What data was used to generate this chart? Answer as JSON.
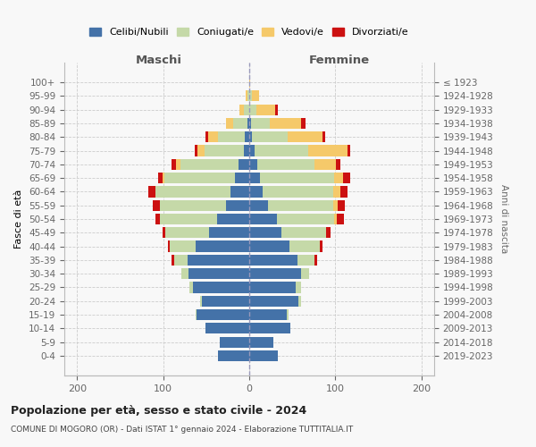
{
  "age_groups": [
    "0-4",
    "5-9",
    "10-14",
    "15-19",
    "20-24",
    "25-29",
    "30-34",
    "35-39",
    "40-44",
    "45-49",
    "50-54",
    "55-59",
    "60-64",
    "65-69",
    "70-74",
    "75-79",
    "80-84",
    "85-89",
    "90-94",
    "95-99",
    "100+"
  ],
  "birth_years": [
    "2019-2023",
    "2014-2018",
    "2009-2013",
    "2004-2008",
    "1999-2003",
    "1994-1998",
    "1989-1993",
    "1984-1988",
    "1979-1983",
    "1974-1978",
    "1969-1973",
    "1964-1968",
    "1959-1963",
    "1954-1958",
    "1949-1953",
    "1944-1948",
    "1939-1943",
    "1934-1938",
    "1929-1933",
    "1924-1928",
    "≤ 1923"
  ],
  "maschi": {
    "celibi": [
      36,
      34,
      51,
      61,
      55,
      65,
      71,
      72,
      62,
      47,
      37,
      27,
      22,
      17,
      12,
      6,
      5,
      2,
      0,
      0,
      0
    ],
    "coniugati": [
      0,
      0,
      0,
      1,
      2,
      5,
      8,
      15,
      30,
      51,
      67,
      77,
      87,
      82,
      68,
      46,
      31,
      17,
      6,
      2,
      0
    ],
    "vedovi": [
      0,
      0,
      0,
      0,
      0,
      0,
      0,
      0,
      0,
      0,
      0,
      0,
      0,
      2,
      5,
      8,
      12,
      8,
      5,
      2,
      0
    ],
    "divorziati": [
      0,
      0,
      0,
      0,
      0,
      0,
      0,
      3,
      3,
      3,
      5,
      8,
      8,
      5,
      5,
      3,
      3,
      0,
      0,
      0,
      0
    ]
  },
  "femmine": {
    "nubili": [
      33,
      28,
      48,
      44,
      57,
      54,
      60,
      56,
      47,
      37,
      32,
      22,
      16,
      12,
      9,
      6,
      3,
      2,
      0,
      0,
      0
    ],
    "coniugate": [
      0,
      0,
      0,
      2,
      3,
      6,
      10,
      20,
      35,
      52,
      67,
      76,
      82,
      87,
      67,
      63,
      42,
      22,
      8,
      3,
      0
    ],
    "vedove": [
      0,
      0,
      0,
      0,
      0,
      0,
      0,
      0,
      0,
      0,
      3,
      5,
      8,
      10,
      25,
      45,
      40,
      36,
      22,
      8,
      1
    ],
    "divorziate": [
      0,
      0,
      0,
      0,
      0,
      0,
      0,
      3,
      3,
      5,
      8,
      8,
      8,
      8,
      5,
      3,
      3,
      5,
      3,
      0,
      0
    ]
  },
  "colors": {
    "celibi": "#4472a8",
    "coniugati": "#c5d9a8",
    "vedovi": "#f5c96a",
    "divorziati": "#cc1111"
  },
  "xlim": [
    -215,
    215
  ],
  "xticks": [
    -200,
    -100,
    0,
    100,
    200
  ],
  "xticklabels": [
    "200",
    "100",
    "0",
    "100",
    "200"
  ],
  "title": "Popolazione per età, sesso e stato civile - 2024",
  "subtitle": "COMUNE DI MOGORO (OR) - Dati ISTAT 1° gennaio 2024 - Elaborazione TUTTITALIA.IT",
  "ylabel_left": "Fasce di età",
  "ylabel_right": "Anni di nascita",
  "label_maschi": "Maschi",
  "label_femmine": "Femmine",
  "legend_labels": [
    "Celibi/Nubili",
    "Coniugati/e",
    "Vedovi/e",
    "Divorziati/e"
  ],
  "bg_color": "#f8f8f8",
  "grid_color": "#cccccc"
}
